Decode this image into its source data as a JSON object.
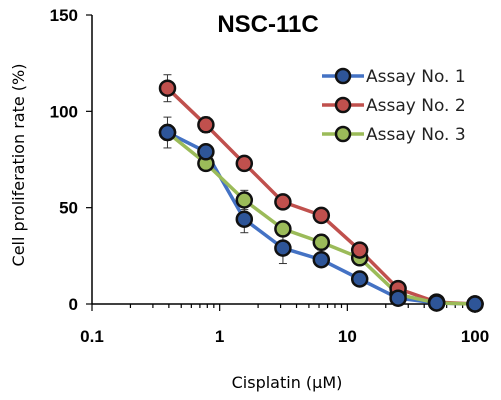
{
  "chart_data": {
    "type": "line",
    "title": "NSC-11C",
    "xlabel": "Cisplatin (μM)",
    "ylabel": "Cell proliferation rate (%)",
    "xscale": "log",
    "xlim": [
      0.1,
      100
    ],
    "ylim": [
      0,
      150
    ],
    "xticks": [
      0.1,
      1,
      10,
      100
    ],
    "xtick_labels": [
      "0.1",
      "1",
      "10",
      "100"
    ],
    "yticks": [
      0,
      50,
      100,
      150
    ],
    "ytick_labels": [
      "0",
      "50",
      "100",
      "150"
    ],
    "legend_position": "top-right",
    "x": [
      0.39,
      0.78,
      1.56,
      3.13,
      6.25,
      12.5,
      25,
      50,
      100
    ],
    "series": [
      {
        "name": "Assay No. 1",
        "line_color": "#4472c4",
        "marker_color": "#2e5598",
        "values": [
          89,
          79,
          44,
          29,
          23,
          13,
          3,
          0.5,
          0
        ],
        "errors": [
          4,
          3,
          7,
          8,
          3,
          2,
          1,
          0.5,
          0.5
        ]
      },
      {
        "name": "Assay No. 2",
        "line_color": "#c0504d",
        "marker_color": "#c0504d",
        "values": [
          112,
          93,
          73,
          53,
          46,
          28,
          8,
          1,
          0
        ],
        "errors": [
          7,
          4,
          2,
          2,
          3,
          2,
          1,
          0.5,
          0.5
        ]
      },
      {
        "name": "Assay No. 3",
        "line_color": "#9bbb59",
        "marker_color": "#9bbb59",
        "values": [
          89,
          73,
          54,
          39,
          32,
          24,
          5,
          0.5,
          0
        ],
        "errors": [
          8,
          3,
          5,
          3,
          4,
          2,
          1,
          0.5,
          0.5
        ]
      }
    ]
  }
}
